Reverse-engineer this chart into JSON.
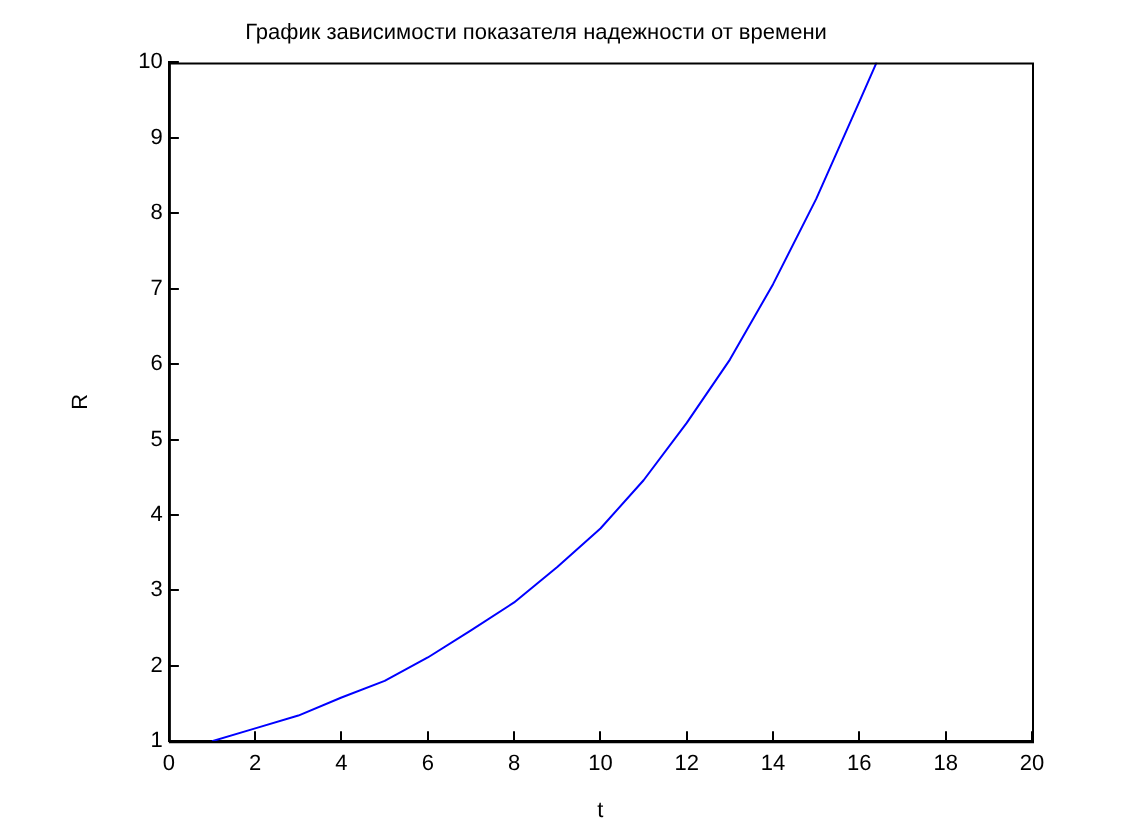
{
  "chart_data": {
    "type": "line",
    "title": "График зависимости показателя надежности от времени",
    "xlabel": "t",
    "ylabel": "R",
    "x": [
      1,
      2,
      3,
      4,
      5,
      6,
      7,
      8,
      9,
      10,
      11,
      12,
      13,
      14,
      15,
      16,
      16.4
    ],
    "series": [
      {
        "color": "#0000ff",
        "values": [
          1.0,
          1.17,
          1.34,
          1.58,
          1.8,
          2.11,
          2.47,
          2.84,
          3.31,
          3.82,
          4.46,
          5.22,
          6.06,
          7.06,
          8.19,
          9.48,
          10.0
        ]
      }
    ],
    "xlim": [
      0,
      20
    ],
    "xticks": [
      0,
      2,
      4,
      6,
      8,
      10,
      12,
      14,
      16,
      18,
      20
    ],
    "ylim": [
      1,
      10
    ],
    "yticks": [
      1,
      2,
      3,
      4,
      5,
      6,
      7,
      8,
      9,
      10
    ],
    "grid": false,
    "legend": false,
    "marker": "none",
    "line_style": "solid"
  }
}
